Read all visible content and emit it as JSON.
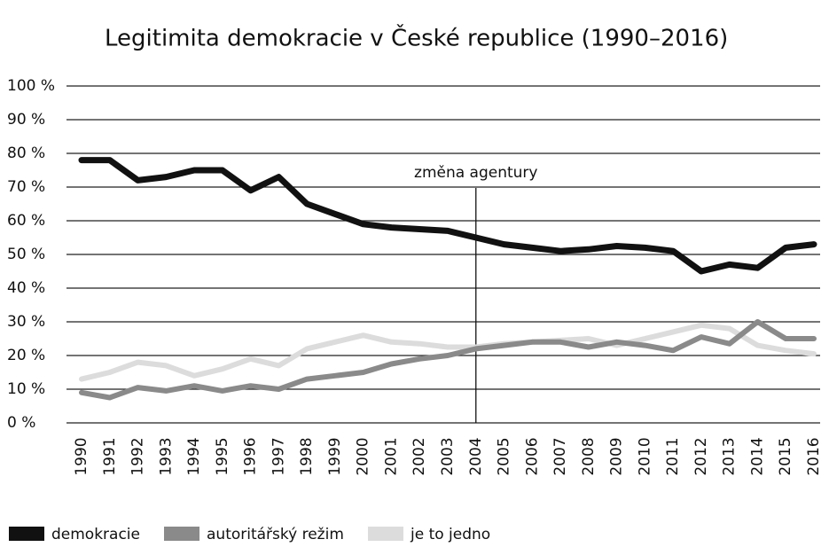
{
  "chart_data": {
    "type": "line",
    "title": "Legitimita demokracie v České republice (1990–2016)",
    "categories": [
      "1990",
      "1991",
      "1992",
      "1993",
      "1994",
      "1995",
      "1996",
      "1997",
      "1998",
      "1999",
      "2000",
      "2001",
      "2002",
      "2003",
      "2004",
      "2005",
      "2006",
      "2007",
      "2008",
      "2009",
      "2010",
      "2011",
      "2012",
      "2013",
      "2014",
      "2015",
      "2016"
    ],
    "series": [
      {
        "name": "demokracie",
        "color": "#111111",
        "values": [
          78,
          78,
          72,
          73,
          75,
          75,
          69,
          73,
          65,
          62,
          59,
          58,
          57.5,
          57,
          55,
          53,
          52,
          51,
          51.5,
          52.5,
          52,
          51,
          45,
          47,
          46,
          52,
          53
        ]
      },
      {
        "name": "autoritářský režim",
        "color": "#8a8a8a",
        "values": [
          9,
          7.5,
          10.5,
          9.5,
          11,
          9.5,
          11,
          10,
          13,
          14,
          15,
          17.5,
          19,
          20,
          22,
          23,
          24,
          24,
          22.5,
          24,
          23,
          21.5,
          25.5,
          23.5,
          30,
          25,
          25
        ]
      },
      {
        "name": "je to jedno",
        "color": "#dcdcdc",
        "values": [
          13,
          15,
          18,
          17,
          14,
          16,
          19,
          17,
          22,
          24,
          26,
          24,
          23.5,
          22.5,
          22.5,
          23.5,
          24,
          24.5,
          25,
          23,
          25,
          27,
          29,
          28,
          23,
          21.5,
          20.5
        ]
      }
    ],
    "ylim": [
      0,
      100
    ],
    "yticks": [
      {
        "value": 0,
        "label": "0 %"
      },
      {
        "value": 10,
        "label": "10 %"
      },
      {
        "value": 20,
        "label": "20 %"
      },
      {
        "value": 30,
        "label": "30 %"
      },
      {
        "value": 40,
        "label": "40 %"
      },
      {
        "value": 50,
        "label": "50 %"
      },
      {
        "value": 60,
        "label": "60 %"
      },
      {
        "value": 70,
        "label": "70 %"
      },
      {
        "value": 80,
        "label": "80 %"
      },
      {
        "value": 90,
        "label": "90 %"
      },
      {
        "value": 100,
        "label": "100 %"
      }
    ],
    "grid": true,
    "annotation": {
      "text": "změna agentury",
      "at": "2004"
    }
  }
}
